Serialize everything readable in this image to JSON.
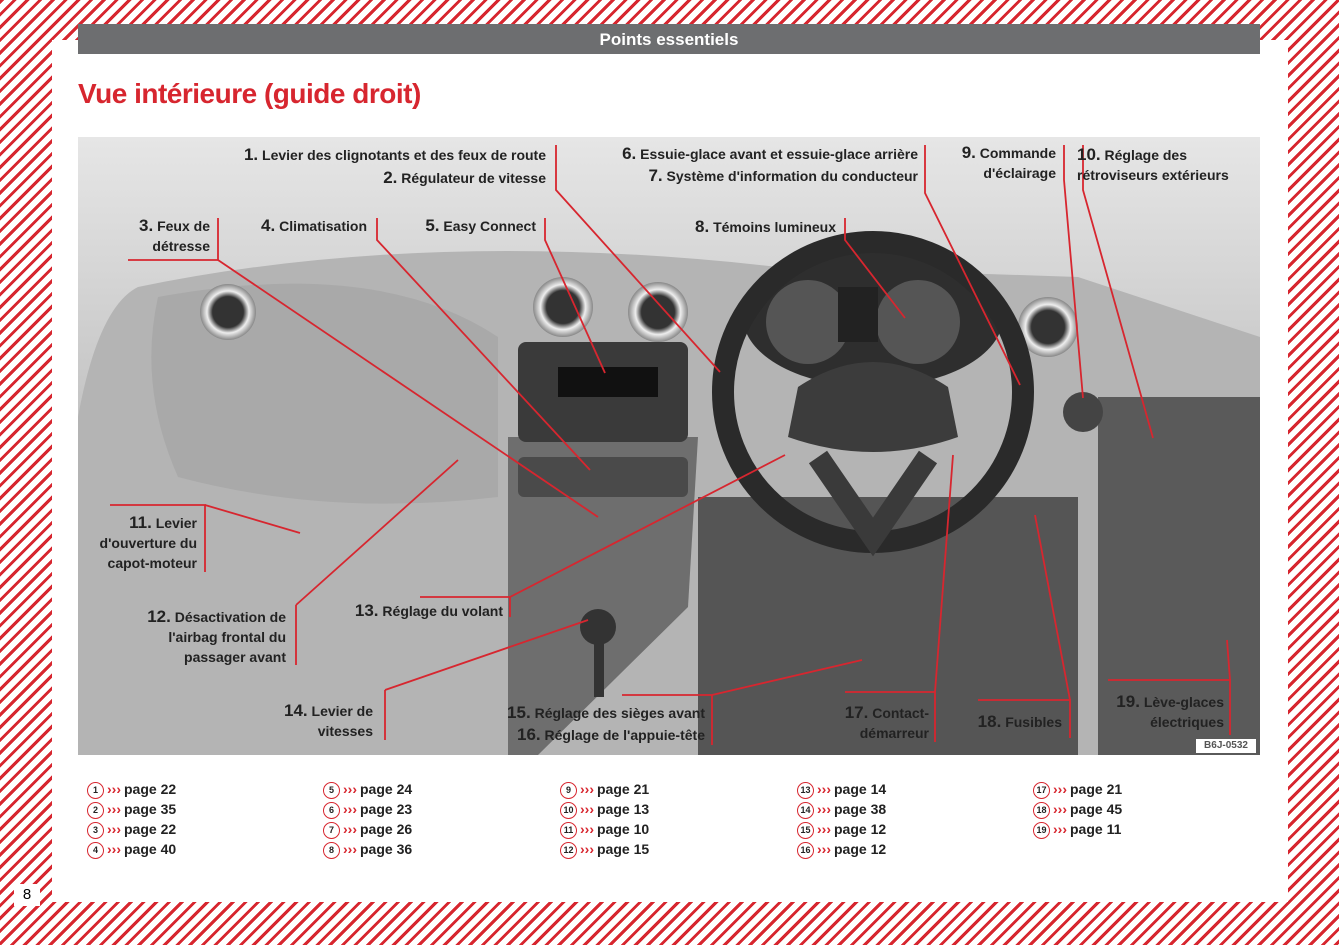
{
  "header": {
    "section": "Points essentiels",
    "title": "Vue intérieure (guide droit)"
  },
  "figure": {
    "code": "B6J-0532",
    "callouts": [
      {
        "num": "1.",
        "lines": [
          "Levier des clignotants et des feux de route"
        ]
      },
      {
        "num": "2.",
        "lines": [
          "Régulateur de vitesse"
        ]
      },
      {
        "num": "3.",
        "lines": [
          "Feux de",
          "détresse"
        ]
      },
      {
        "num": "4.",
        "lines": [
          "Climatisation"
        ]
      },
      {
        "num": "5.",
        "lines": [
          "Easy Connect"
        ]
      },
      {
        "num": "6.",
        "lines": [
          "Essuie-glace avant et essuie-glace arrière"
        ]
      },
      {
        "num": "7.",
        "lines": [
          "Système d'information du conducteur"
        ]
      },
      {
        "num": "8.",
        "lines": [
          "Témoins lumineux"
        ]
      },
      {
        "num": "9.",
        "lines": [
          "Commande",
          "d'éclairage"
        ]
      },
      {
        "num": "10.",
        "lines": [
          "Réglage des",
          "rétroviseurs extérieurs"
        ]
      },
      {
        "num": "11.",
        "lines": [
          "Levier",
          "d'ouverture du",
          "capot-moteur"
        ]
      },
      {
        "num": "12.",
        "lines": [
          "Désactivation de",
          "l'airbag frontal du",
          "passager avant"
        ]
      },
      {
        "num": "13.",
        "lines": [
          "Réglage du volant"
        ]
      },
      {
        "num": "14.",
        "lines": [
          "Levier de",
          "vitesses"
        ]
      },
      {
        "num": "15.",
        "lines": [
          "Réglage des sièges avant"
        ]
      },
      {
        "num": "16.",
        "lines": [
          "Réglage de l'appuie-tête"
        ]
      },
      {
        "num": "17.",
        "lines": [
          "Contact-",
          "démarreur"
        ]
      },
      {
        "num": "18.",
        "lines": [
          "Fusibles"
        ]
      },
      {
        "num": "19.",
        "lines": [
          "Lève-glaces",
          "électriques"
        ]
      }
    ]
  },
  "references": [
    [
      {
        "num": 1,
        "page": "page 22"
      },
      {
        "num": 2,
        "page": "page 35"
      },
      {
        "num": 3,
        "page": "page 22"
      },
      {
        "num": 4,
        "page": "page 40"
      }
    ],
    [
      {
        "num": 5,
        "page": "page 24"
      },
      {
        "num": 6,
        "page": "page 23"
      },
      {
        "num": 7,
        "page": "page 26"
      },
      {
        "num": 8,
        "page": "page 36"
      }
    ],
    [
      {
        "num": 9,
        "page": "page 21"
      },
      {
        "num": 10,
        "page": "page 13"
      },
      {
        "num": 11,
        "page": "page 10"
      },
      {
        "num": 12,
        "page": "page 15"
      }
    ],
    [
      {
        "num": 13,
        "page": "page 14"
      },
      {
        "num": 14,
        "page": "page 38"
      },
      {
        "num": 15,
        "page": "page 12"
      },
      {
        "num": 16,
        "page": "page 12"
      }
    ],
    [
      {
        "num": 17,
        "page": "page 21"
      },
      {
        "num": 18,
        "page": "page 45"
      },
      {
        "num": 19,
        "page": "page 11"
      }
    ]
  ],
  "page_number": 8
}
